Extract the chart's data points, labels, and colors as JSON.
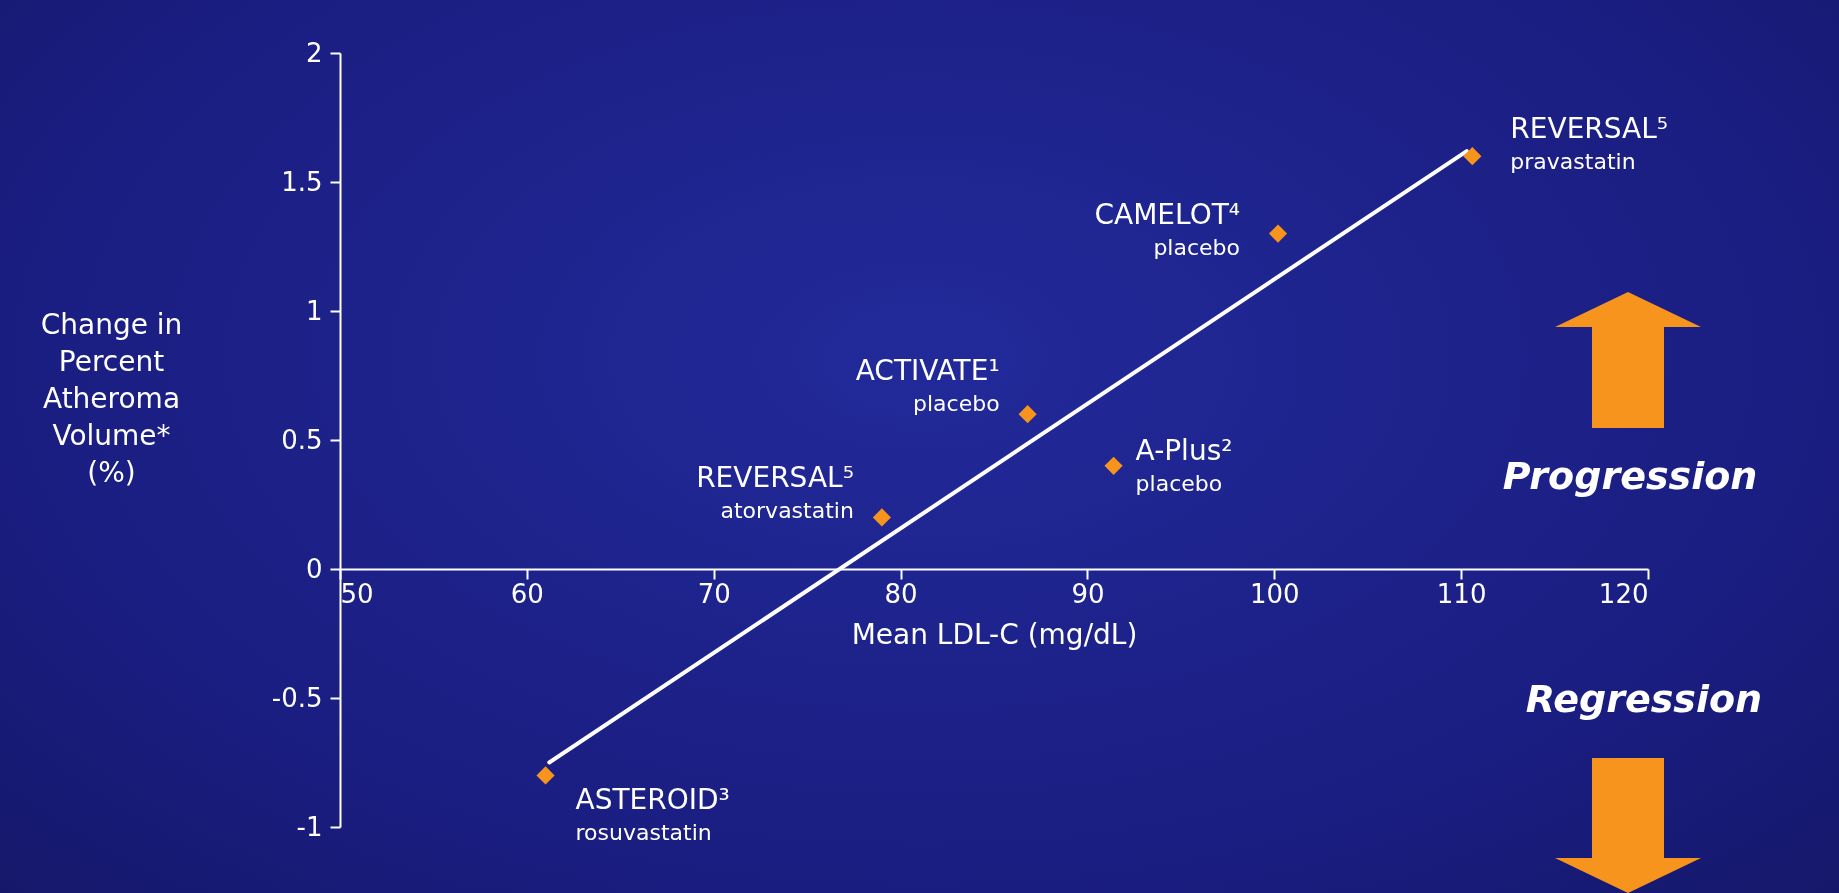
{
  "chart_data": {
    "type": "scatter",
    "xlabel": "Mean LDL-C (mg/dL)",
    "ylabel": "Change in\nPercent\nAtheroma\nVolume*\n(%)",
    "xlim": [
      50,
      120
    ],
    "ylim": [
      -1,
      2
    ],
    "xticks": [
      50,
      60,
      70,
      80,
      90,
      100,
      110,
      120
    ],
    "yticks": [
      -1,
      -0.5,
      0,
      0.5,
      1,
      1.5,
      2
    ],
    "marker": "diamond",
    "series": [
      {
        "color": "#f7941d",
        "x": [
          61,
          79,
          86.8,
          91.4,
          100.2,
          110.6
        ],
        "values": [
          -0.8,
          0.2,
          0.6,
          0.4,
          1.3,
          1.6
        ]
      },
      {
        "type": "line",
        "marker": "none",
        "color": "#ffffff",
        "x": [
          61.2,
          110.3
        ],
        "values": [
          -0.75,
          1.62
        ]
      }
    ],
    "annotations": [
      {
        "text": "REVERSAL⁵\npravastatin",
        "x": 110.6,
        "y": 1.6
      },
      {
        "text": "CAMELOT⁴\nplacebo",
        "x": 100.2,
        "y": 1.3
      },
      {
        "text": "ACTIVATE¹\nplacebo",
        "x": 86.8,
        "y": 0.6
      },
      {
        "text": "A-Plus²\nplacebo",
        "x": 91.4,
        "y": 0.4
      },
      {
        "text": "REVERSAL⁵\natorvastatin",
        "x": 79,
        "y": 0.2
      },
      {
        "text": "ASTEROID³\nrosuvastatin",
        "x": 61,
        "y": -0.8
      },
      "Progression",
      "Regression"
    ]
  }
}
